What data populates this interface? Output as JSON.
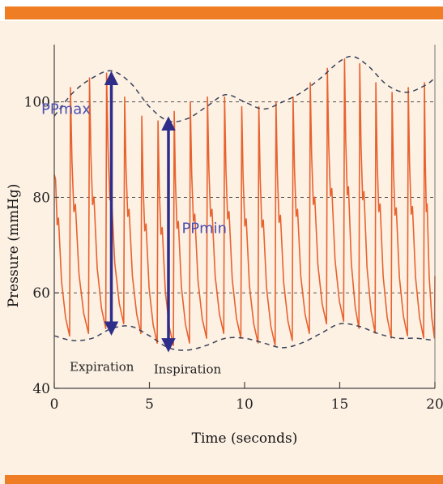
{
  "colors": {
    "background": "#fdf1e4",
    "band": "#ee7d23",
    "waveform": "#e8622e",
    "envelope": "#3a4258",
    "arrow": "#2f2d8a",
    "grid": "#555555"
  },
  "chart_data": {
    "type": "line",
    "xlabel": "Time (seconds)",
    "ylabel": "Pressure (mmHg)",
    "xlim": [
      0,
      20
    ],
    "ylim": [
      40,
      112
    ],
    "xticks": [
      "0",
      "5",
      "10",
      "15",
      "20"
    ],
    "yticks": [
      "40",
      "60",
      "80",
      "100"
    ],
    "grid": "horizontal dashed at 60, 80, 100",
    "beats": {
      "times": [
        0.0,
        0.85,
        1.85,
        2.75,
        3.7,
        4.6,
        5.45,
        6.3,
        7.15,
        8.05,
        8.95,
        9.85,
        10.75,
        11.65,
        12.55,
        13.45,
        14.35,
        15.25,
        16.05,
        16.9,
        17.75,
        18.6,
        19.45
      ],
      "systolic": [
        98,
        103,
        105,
        106,
        101,
        97,
        96,
        98,
        100,
        101,
        101,
        99,
        99,
        100,
        101,
        104,
        107,
        109,
        108,
        104,
        102,
        103,
        104
      ],
      "diastolic": [
        51,
        50.5,
        51,
        52,
        53,
        51,
        49,
        48.5,
        49,
        50,
        51,
        50,
        49,
        48.5,
        49.5,
        51,
        53,
        53.5,
        52,
        51,
        50,
        50.5,
        50
      ]
    },
    "upper_envelope": {
      "x": [
        0,
        1,
        2,
        3,
        4,
        5,
        6,
        7,
        8,
        9,
        10,
        11,
        12,
        13,
        14,
        15,
        15.7,
        16.5,
        17.5,
        18.5,
        19.5,
        20
      ],
      "y": [
        97,
        102,
        105,
        106.5,
        104,
        99,
        96,
        96.5,
        99,
        101.5,
        100,
        98.5,
        100,
        102,
        105,
        108.5,
        109.5,
        107.5,
        103.5,
        102,
        103.5,
        105
      ]
    },
    "lower_envelope": {
      "x": [
        0,
        1,
        2,
        3,
        4,
        5,
        6,
        7,
        8,
        9,
        10,
        11,
        12,
        13,
        14,
        15,
        16,
        17,
        18,
        19,
        20
      ],
      "y": [
        51,
        50,
        50.5,
        52.5,
        53,
        51,
        48.5,
        48,
        49,
        50.5,
        50.5,
        49.5,
        48.5,
        49.5,
        51.5,
        53.5,
        53,
        51.5,
        50.5,
        50.5,
        50
      ]
    },
    "annotations": {
      "pp_max": {
        "label": "PPmax",
        "x": 3.0,
        "y_top": 106,
        "y_bottom": 51.5
      },
      "pp_min": {
        "label": "PPmin",
        "x": 6.0,
        "y_top": 96.5,
        "y_bottom": 48
      },
      "expiration": {
        "label": "Expiration",
        "x": 2.5,
        "y": 44.5
      },
      "inspiration": {
        "label": "Inspiration",
        "x": 7.0,
        "y": 44
      }
    }
  }
}
